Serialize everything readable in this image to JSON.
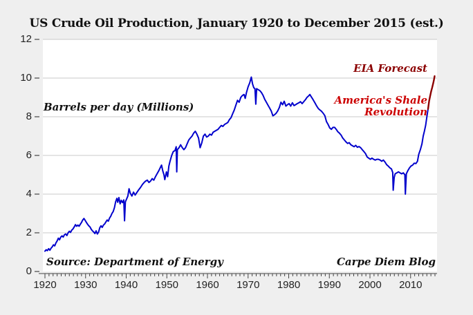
{
  "title": "US Crude Oil Production, January 1920 to December 2015 (est.)",
  "annotations": {
    "units_note": "Barrels per day (Millions)",
    "forecast_label": "EIA Forecast",
    "shale_label_line1": "America's Shale",
    "shale_label_line2": "Revolution",
    "source_note": "Source: Department of Energy",
    "credit_note": "Carpe Diem Blog"
  },
  "colors": {
    "background": "#EFEFEF",
    "plot_background": "#FFFFFF",
    "gridline": "#C9C9C9",
    "axis": "#444444",
    "tick_label": "#222222",
    "actual_line": "#0000CC",
    "forecast_line": "#8B0000",
    "forecast_label": "#8B0000",
    "shale_label": "#CC0000"
  },
  "chart_data": {
    "type": "line",
    "title": "US Crude Oil Production, January 1920 to December 2015 (est.)",
    "xlabel": "",
    "ylabel": "Barrels per day (Millions)",
    "x_range": [
      1920,
      2016
    ],
    "y_range": [
      0,
      12
    ],
    "y_ticks": [
      0,
      2,
      4,
      6,
      8,
      10,
      12
    ],
    "x_ticks": [
      1920,
      1930,
      1940,
      1950,
      1960,
      1970,
      1980,
      1990,
      2000,
      2010
    ],
    "minor_x_tick_step_years": 1,
    "grid": "horizontal",
    "legend": "none",
    "series": [
      {
        "name": "US crude oil production (actual, monthly)",
        "color": "#0000CC",
        "points": [
          [
            1920.0,
            1.05
          ],
          [
            1920.3,
            1.12
          ],
          [
            1920.6,
            1.08
          ],
          [
            1920.9,
            1.18
          ],
          [
            1921.2,
            1.1
          ],
          [
            1921.5,
            1.2
          ],
          [
            1921.8,
            1.28
          ],
          [
            1922.1,
            1.38
          ],
          [
            1922.4,
            1.32
          ],
          [
            1922.7,
            1.48
          ],
          [
            1923.0,
            1.58
          ],
          [
            1923.3,
            1.72
          ],
          [
            1923.6,
            1.64
          ],
          [
            1923.9,
            1.78
          ],
          [
            1924.2,
            1.84
          ],
          [
            1924.5,
            1.78
          ],
          [
            1924.8,
            1.9
          ],
          [
            1925.1,
            1.94
          ],
          [
            1925.4,
            1.86
          ],
          [
            1925.7,
            2.0
          ],
          [
            1926.0,
            2.08
          ],
          [
            1926.3,
            2.02
          ],
          [
            1926.6,
            2.14
          ],
          [
            1926.9,
            2.2
          ],
          [
            1927.2,
            2.3
          ],
          [
            1927.5,
            2.42
          ],
          [
            1927.8,
            2.34
          ],
          [
            1928.1,
            2.4
          ],
          [
            1928.4,
            2.34
          ],
          [
            1928.7,
            2.44
          ],
          [
            1929.0,
            2.54
          ],
          [
            1929.3,
            2.66
          ],
          [
            1929.6,
            2.74
          ],
          [
            1929.9,
            2.64
          ],
          [
            1930.2,
            2.54
          ],
          [
            1930.5,
            2.44
          ],
          [
            1930.8,
            2.36
          ],
          [
            1931.1,
            2.3
          ],
          [
            1931.4,
            2.18
          ],
          [
            1931.7,
            2.1
          ],
          [
            1932.0,
            2.04
          ],
          [
            1932.3,
            1.96
          ],
          [
            1932.6,
            2.1
          ],
          [
            1932.9,
            1.94
          ],
          [
            1933.2,
            2.04
          ],
          [
            1933.5,
            2.26
          ],
          [
            1933.8,
            2.36
          ],
          [
            1934.1,
            2.28
          ],
          [
            1934.4,
            2.4
          ],
          [
            1934.7,
            2.46
          ],
          [
            1935.0,
            2.56
          ],
          [
            1935.3,
            2.66
          ],
          [
            1935.6,
            2.6
          ],
          [
            1935.9,
            2.76
          ],
          [
            1936.2,
            2.86
          ],
          [
            1936.5,
            3.0
          ],
          [
            1936.8,
            3.1
          ],
          [
            1937.1,
            3.3
          ],
          [
            1937.4,
            3.6
          ],
          [
            1937.7,
            3.78
          ],
          [
            1937.9,
            3.58
          ],
          [
            1938.2,
            3.82
          ],
          [
            1938.5,
            3.5
          ],
          [
            1938.8,
            3.68
          ],
          [
            1939.1,
            3.56
          ],
          [
            1939.4,
            3.7
          ],
          [
            1939.6,
            2.62
          ],
          [
            1939.8,
            3.6
          ],
          [
            1940.1,
            3.75
          ],
          [
            1940.4,
            3.9
          ],
          [
            1940.7,
            4.28
          ],
          [
            1941.0,
            4.05
          ],
          [
            1941.4,
            3.9
          ],
          [
            1941.8,
            4.1
          ],
          [
            1942.2,
            3.95
          ],
          [
            1942.6,
            4.08
          ],
          [
            1943.0,
            4.2
          ],
          [
            1943.5,
            4.34
          ],
          [
            1944.0,
            4.5
          ],
          [
            1944.4,
            4.6
          ],
          [
            1944.8,
            4.68
          ],
          [
            1945.2,
            4.72
          ],
          [
            1945.6,
            4.6
          ],
          [
            1946.0,
            4.68
          ],
          [
            1946.4,
            4.8
          ],
          [
            1946.8,
            4.72
          ],
          [
            1947.2,
            4.9
          ],
          [
            1947.6,
            5.05
          ],
          [
            1948.0,
            5.2
          ],
          [
            1948.4,
            5.38
          ],
          [
            1948.7,
            5.5
          ],
          [
            1949.0,
            5.2
          ],
          [
            1949.3,
            5.0
          ],
          [
            1949.5,
            4.75
          ],
          [
            1949.9,
            5.15
          ],
          [
            1950.2,
            4.9
          ],
          [
            1950.5,
            5.45
          ],
          [
            1950.8,
            5.7
          ],
          [
            1951.2,
            6.0
          ],
          [
            1951.6,
            6.2
          ],
          [
            1952.0,
            6.25
          ],
          [
            1952.3,
            6.45
          ],
          [
            1952.45,
            5.15
          ],
          [
            1952.6,
            6.3
          ],
          [
            1953.0,
            6.4
          ],
          [
            1953.4,
            6.55
          ],
          [
            1953.8,
            6.4
          ],
          [
            1954.2,
            6.3
          ],
          [
            1954.6,
            6.4
          ],
          [
            1955.0,
            6.6
          ],
          [
            1955.4,
            6.8
          ],
          [
            1955.8,
            6.9
          ],
          [
            1956.2,
            7.0
          ],
          [
            1956.6,
            7.15
          ],
          [
            1957.0,
            7.25
          ],
          [
            1957.4,
            7.1
          ],
          [
            1957.8,
            6.9
          ],
          [
            1958.2,
            6.4
          ],
          [
            1958.6,
            6.65
          ],
          [
            1959.0,
            7.0
          ],
          [
            1959.4,
            7.1
          ],
          [
            1959.8,
            6.95
          ],
          [
            1960.2,
            7.0
          ],
          [
            1960.6,
            7.1
          ],
          [
            1961.0,
            7.05
          ],
          [
            1961.4,
            7.2
          ],
          [
            1961.8,
            7.25
          ],
          [
            1962.2,
            7.3
          ],
          [
            1962.6,
            7.35
          ],
          [
            1963.0,
            7.45
          ],
          [
            1963.4,
            7.55
          ],
          [
            1963.8,
            7.5
          ],
          [
            1964.2,
            7.6
          ],
          [
            1964.6,
            7.65
          ],
          [
            1965.0,
            7.7
          ],
          [
            1965.4,
            7.85
          ],
          [
            1965.8,
            7.95
          ],
          [
            1966.2,
            8.15
          ],
          [
            1966.6,
            8.35
          ],
          [
            1967.0,
            8.6
          ],
          [
            1967.4,
            8.85
          ],
          [
            1967.8,
            8.75
          ],
          [
            1968.2,
            9.0
          ],
          [
            1968.6,
            9.1
          ],
          [
            1969.0,
            9.15
          ],
          [
            1969.3,
            8.95
          ],
          [
            1969.6,
            9.25
          ],
          [
            1970.0,
            9.55
          ],
          [
            1970.4,
            9.75
          ],
          [
            1970.8,
            10.05
          ],
          [
            1971.1,
            9.7
          ],
          [
            1971.4,
            9.5
          ],
          [
            1971.7,
            9.45
          ],
          [
            1971.9,
            8.65
          ],
          [
            1972.1,
            9.45
          ],
          [
            1972.5,
            9.4
          ],
          [
            1972.9,
            9.35
          ],
          [
            1973.3,
            9.25
          ],
          [
            1973.7,
            9.1
          ],
          [
            1974.1,
            8.9
          ],
          [
            1974.5,
            8.75
          ],
          [
            1974.9,
            8.6
          ],
          [
            1975.3,
            8.45
          ],
          [
            1975.7,
            8.3
          ],
          [
            1976.1,
            8.05
          ],
          [
            1976.5,
            8.1
          ],
          [
            1976.9,
            8.18
          ],
          [
            1977.3,
            8.3
          ],
          [
            1977.7,
            8.48
          ],
          [
            1978.1,
            8.75
          ],
          [
            1978.5,
            8.62
          ],
          [
            1978.9,
            8.8
          ],
          [
            1979.3,
            8.55
          ],
          [
            1979.7,
            8.62
          ],
          [
            1980.1,
            8.68
          ],
          [
            1980.5,
            8.55
          ],
          [
            1980.9,
            8.72
          ],
          [
            1981.3,
            8.58
          ],
          [
            1981.7,
            8.62
          ],
          [
            1982.1,
            8.68
          ],
          [
            1982.5,
            8.72
          ],
          [
            1982.9,
            8.78
          ],
          [
            1983.3,
            8.68
          ],
          [
            1983.7,
            8.78
          ],
          [
            1984.1,
            8.88
          ],
          [
            1984.5,
            9.0
          ],
          [
            1984.9,
            9.08
          ],
          [
            1985.2,
            9.15
          ],
          [
            1985.5,
            9.05
          ],
          [
            1985.8,
            8.95
          ],
          [
            1986.1,
            8.85
          ],
          [
            1986.5,
            8.7
          ],
          [
            1986.9,
            8.55
          ],
          [
            1987.3,
            8.42
          ],
          [
            1987.7,
            8.35
          ],
          [
            1988.1,
            8.28
          ],
          [
            1988.5,
            8.18
          ],
          [
            1988.9,
            8.05
          ],
          [
            1989.3,
            7.75
          ],
          [
            1989.7,
            7.6
          ],
          [
            1990.1,
            7.42
          ],
          [
            1990.5,
            7.35
          ],
          [
            1990.9,
            7.45
          ],
          [
            1991.3,
            7.45
          ],
          [
            1991.7,
            7.35
          ],
          [
            1992.1,
            7.22
          ],
          [
            1992.5,
            7.15
          ],
          [
            1992.9,
            7.05
          ],
          [
            1993.3,
            6.9
          ],
          [
            1993.7,
            6.8
          ],
          [
            1994.1,
            6.7
          ],
          [
            1994.5,
            6.62
          ],
          [
            1994.9,
            6.66
          ],
          [
            1995.3,
            6.55
          ],
          [
            1995.7,
            6.5
          ],
          [
            1996.1,
            6.45
          ],
          [
            1996.5,
            6.52
          ],
          [
            1996.9,
            6.42
          ],
          [
            1997.3,
            6.46
          ],
          [
            1997.7,
            6.4
          ],
          [
            1998.1,
            6.3
          ],
          [
            1998.5,
            6.2
          ],
          [
            1998.9,
            6.1
          ],
          [
            1999.3,
            5.92
          ],
          [
            1999.7,
            5.86
          ],
          [
            2000.1,
            5.8
          ],
          [
            2000.5,
            5.86
          ],
          [
            2000.9,
            5.8
          ],
          [
            2001.3,
            5.76
          ],
          [
            2001.7,
            5.8
          ],
          [
            2002.1,
            5.8
          ],
          [
            2002.5,
            5.76
          ],
          [
            2002.9,
            5.7
          ],
          [
            2003.3,
            5.76
          ],
          [
            2003.7,
            5.66
          ],
          [
            2004.1,
            5.52
          ],
          [
            2004.5,
            5.45
          ],
          [
            2004.9,
            5.36
          ],
          [
            2005.3,
            5.3
          ],
          [
            2005.6,
            5.12
          ],
          [
            2005.72,
            4.2
          ],
          [
            2005.95,
            4.85
          ],
          [
            2006.2,
            5.05
          ],
          [
            2006.6,
            5.1
          ],
          [
            2007.0,
            5.15
          ],
          [
            2007.4,
            5.1
          ],
          [
            2007.8,
            5.05
          ],
          [
            2008.2,
            5.1
          ],
          [
            2008.6,
            5.0
          ],
          [
            2008.72,
            4.0
          ],
          [
            2008.95,
            5.05
          ],
          [
            2009.3,
            5.2
          ],
          [
            2009.7,
            5.35
          ],
          [
            2010.1,
            5.45
          ],
          [
            2010.5,
            5.5
          ],
          [
            2010.9,
            5.6
          ],
          [
            2011.3,
            5.58
          ],
          [
            2011.7,
            5.7
          ],
          [
            2012.0,
            6.05
          ],
          [
            2012.4,
            6.3
          ],
          [
            2012.8,
            6.6
          ],
          [
            2013.1,
            7.0
          ],
          [
            2013.4,
            7.25
          ],
          [
            2013.7,
            7.55
          ],
          [
            2014.0,
            8.0
          ],
          [
            2014.3,
            8.4
          ]
        ]
      },
      {
        "name": "EIA Forecast",
        "color": "#8B0000",
        "points": [
          [
            2014.3,
            8.4
          ],
          [
            2014.55,
            8.8
          ],
          [
            2014.8,
            9.05
          ],
          [
            2015.05,
            9.3
          ],
          [
            2015.3,
            9.5
          ],
          [
            2015.55,
            9.72
          ],
          [
            2015.75,
            9.9
          ],
          [
            2015.92,
            10.1
          ]
        ]
      }
    ]
  }
}
